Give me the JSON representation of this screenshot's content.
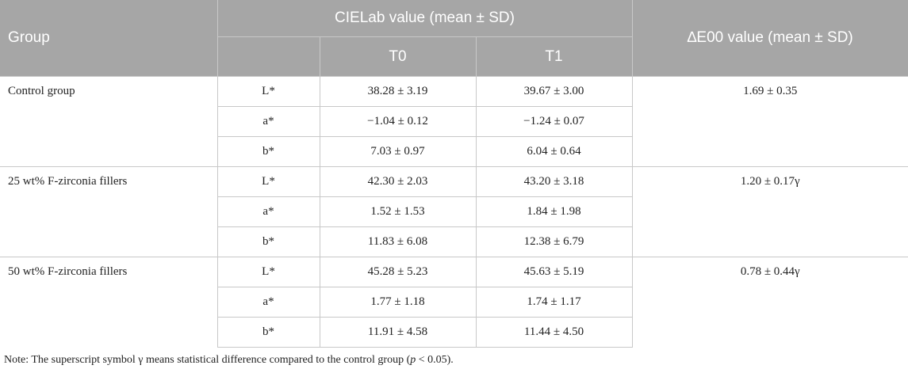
{
  "header": {
    "group": "Group",
    "cielab": "CIELab value (mean ± SD)",
    "delta_e": "∆E00 value (mean ± SD)",
    "t0": "T0",
    "t1": "T1"
  },
  "groups": [
    {
      "name": "Control group",
      "delta_e": "1.69 ± 0.35",
      "rows": [
        {
          "param": "L*",
          "t0": "38.28 ± 3.19",
          "t1": "39.67 ± 3.00"
        },
        {
          "param": "a*",
          "t0": "−1.04 ± 0.12",
          "t1": "−1.24 ± 0.07"
        },
        {
          "param": "b*",
          "t0": "7.03 ± 0.97",
          "t1": "6.04 ± 0.64"
        }
      ]
    },
    {
      "name": "25 wt% F-zirconia fillers",
      "delta_e": "1.20 ± 0.17γ",
      "rows": [
        {
          "param": "L*",
          "t0": "42.30 ± 2.03",
          "t1": "43.20 ± 3.18"
        },
        {
          "param": "a*",
          "t0": "1.52 ± 1.53",
          "t1": "1.84 ± 1.98"
        },
        {
          "param": "b*",
          "t0": "11.83 ± 6.08",
          "t1": "12.38 ± 6.79"
        }
      ]
    },
    {
      "name": "50 wt% F-zirconia fillers",
      "delta_e": "0.78 ± 0.44γ",
      "rows": [
        {
          "param": "L*",
          "t0": "45.28 ± 5.23",
          "t1": "45.63 ± 5.19"
        },
        {
          "param": "a*",
          "t0": "1.77 ± 1.18",
          "t1": "1.74 ± 1.17"
        },
        {
          "param": "b*",
          "t0": "11.91 ± 4.58",
          "t1": "11.44 ± 4.50"
        }
      ]
    }
  ],
  "note": {
    "prefix": "Note: The superscript symbol γ means statistical difference compared to the control group (",
    "p": "p",
    "suffix": " < 0.05)."
  }
}
